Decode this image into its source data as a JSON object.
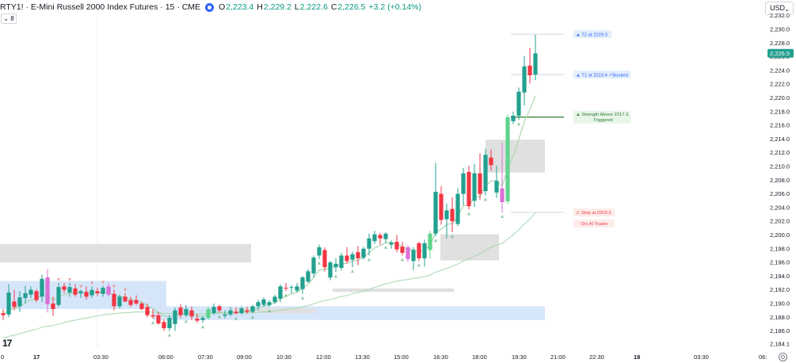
{
  "header": {
    "symbol": "RTY1! · E-Mini Russell 2000 Index Futures · 15 · CME",
    "open_label": "O",
    "open": "2,223.4",
    "high_label": "H",
    "high": "2,229.2",
    "low_label": "L",
    "low": "2,222.6",
    "close_label": "C",
    "close": "2,226.5",
    "change": "+3.2 (+0.14%)",
    "indicator_count": "8"
  },
  "currency_selector": {
    "label": "USD",
    "icon": "chevron-down-icon"
  },
  "logo_icon": "tradingview-logo-icon",
  "settings_icon": "gear-icon",
  "colors": {
    "up": "#22a08f",
    "down": "#f23645",
    "pink": "#da70d6",
    "light_green": "#5fd48c",
    "ma": "#a8d8b0",
    "ma_red": "#f08080",
    "zone_grey": "#e0e0e0",
    "zone_blue": "#d6e6fa",
    "price_tag": "#22a08f"
  },
  "chart_data": {
    "type": "candlestick",
    "ylim": [
      2184.1,
      2232.2
    ],
    "y_ticks": [
      "2,186.0",
      "2,188.0",
      "2,190.0",
      "2,192.0",
      "2,194.0",
      "2,196.0",
      "2,198.0",
      "2,200.0",
      "2,202.0",
      "2,204.0",
      "2,206.0",
      "2,208.0",
      "2,210.0",
      "2,212.0",
      "2,214.0",
      "2,216.0",
      "2,218.0",
      "2,220.0",
      "2,222.0",
      "2,224.0",
      "2,226.0",
      "2,228.0",
      "2,230.0",
      "2,232.0",
      "2,184.1"
    ],
    "x_ticks": [
      "0",
      "17",
      "03:30",
      "06:00",
      "07:30",
      "09:00",
      "10:30",
      "12:00",
      "13:30",
      "15:00",
      "16:30",
      "18:00",
      "19:30",
      "21:00",
      "22:30",
      "18",
      "03:30",
      "06:"
    ],
    "last_price": "2,226.5",
    "candles": [
      {
        "o": 2188.6,
        "h": 2189.2,
        "l": 2187.6,
        "c": 2188.3
      },
      {
        "o": 2188.4,
        "h": 2192.8,
        "l": 2188.0,
        "c": 2191.6
      },
      {
        "o": 2190.3,
        "h": 2192.0,
        "l": 2189.0,
        "c": 2189.5
      },
      {
        "o": 2189.6,
        "h": 2191.8,
        "l": 2188.8,
        "c": 2190.9
      },
      {
        "o": 2190.8,
        "h": 2192.6,
        "l": 2190.0,
        "c": 2191.5
      },
      {
        "o": 2191.3,
        "h": 2192.5,
        "l": 2190.8,
        "c": 2192.0
      },
      {
        "o": 2191.8,
        "h": 2192.1,
        "l": 2190.2,
        "c": 2190.5
      },
      {
        "o": 2191.0,
        "h": 2194.2,
        "l": 2190.2,
        "c": 2193.6
      },
      {
        "o": 2193.8,
        "h": 2195.0,
        "l": 2188.7,
        "c": 2189.9,
        "color": "pink"
      },
      {
        "o": 2190.0,
        "h": 2191.0,
        "l": 2188.2,
        "c": 2189.2
      },
      {
        "o": 2189.8,
        "h": 2193.0,
        "l": 2189.5,
        "c": 2192.4
      },
      {
        "o": 2192.5,
        "h": 2193.0,
        "l": 2191.5,
        "c": 2192.0
      },
      {
        "o": 2191.6,
        "h": 2193.0,
        "l": 2191.0,
        "c": 2192.4
      },
      {
        "o": 2192.2,
        "h": 2192.8,
        "l": 2191.0,
        "c": 2191.3
      },
      {
        "o": 2191.5,
        "h": 2192.0,
        "l": 2190.8,
        "c": 2191.8
      },
      {
        "o": 2191.7,
        "h": 2192.5,
        "l": 2190.6,
        "c": 2191.0
      },
      {
        "o": 2191.2,
        "h": 2192.5,
        "l": 2190.8,
        "c": 2192.0
      },
      {
        "o": 2191.8,
        "h": 2192.3,
        "l": 2191.1,
        "c": 2191.5
      },
      {
        "o": 2191.4,
        "h": 2192.6,
        "l": 2191.0,
        "c": 2192.3
      },
      {
        "o": 2192.5,
        "h": 2193.0,
        "l": 2191.0,
        "c": 2191.3,
        "color": "pink"
      },
      {
        "o": 2191.4,
        "h": 2192.0,
        "l": 2189.0,
        "c": 2189.6
      },
      {
        "o": 2189.6,
        "h": 2191.3,
        "l": 2189.3,
        "c": 2191.0
      },
      {
        "o": 2191.0,
        "h": 2191.5,
        "l": 2190.2,
        "c": 2190.3
      },
      {
        "o": 2190.5,
        "h": 2191.0,
        "l": 2189.5,
        "c": 2189.8
      },
      {
        "o": 2190.5,
        "h": 2191.2,
        "l": 2189.8,
        "c": 2190.0
      },
      {
        "o": 2190.0,
        "h": 2190.3,
        "l": 2189.0,
        "c": 2189.2
      },
      {
        "o": 2189.5,
        "h": 2190.0,
        "l": 2188.0,
        "c": 2188.3
      },
      {
        "o": 2188.3,
        "h": 2189.2,
        "l": 2187.8,
        "c": 2188.1
      },
      {
        "o": 2188.3,
        "h": 2188.8,
        "l": 2186.9,
        "c": 2187.1
      },
      {
        "o": 2187.3,
        "h": 2187.7,
        "l": 2186.0,
        "c": 2186.4
      },
      {
        "o": 2186.4,
        "h": 2188.3,
        "l": 2186.0,
        "c": 2187.9
      },
      {
        "o": 2187.0,
        "h": 2189.4,
        "l": 2186.0,
        "c": 2189.0
      },
      {
        "o": 2189.4,
        "h": 2189.9,
        "l": 2187.9,
        "c": 2188.3
      },
      {
        "o": 2188.3,
        "h": 2189.8,
        "l": 2188.0,
        "c": 2189.2
      },
      {
        "o": 2189.0,
        "h": 2189.6,
        "l": 2187.6,
        "c": 2188.1
      },
      {
        "o": 2187.8,
        "h": 2188.5,
        "l": 2187.2,
        "c": 2187.5
      },
      {
        "o": 2187.6,
        "h": 2188.2,
        "l": 2187.2,
        "c": 2187.9
      },
      {
        "o": 2187.9,
        "h": 2189.5,
        "l": 2187.6,
        "c": 2189.2,
        "color": "light"
      },
      {
        "o": 2188.6,
        "h": 2190.0,
        "l": 2188.3,
        "c": 2189.5
      },
      {
        "o": 2189.6,
        "h": 2189.8,
        "l": 2188.7,
        "c": 2189.0
      },
      {
        "o": 2188.2,
        "h": 2189.0,
        "l": 2187.8,
        "c": 2188.4
      },
      {
        "o": 2188.4,
        "h": 2189.5,
        "l": 2188.1,
        "c": 2189.0
      },
      {
        "o": 2188.8,
        "h": 2189.4,
        "l": 2188.4,
        "c": 2188.6
      },
      {
        "o": 2188.6,
        "h": 2189.6,
        "l": 2188.4,
        "c": 2189.3
      },
      {
        "o": 2189.0,
        "h": 2189.5,
        "l": 2188.5,
        "c": 2188.8
      },
      {
        "o": 2188.8,
        "h": 2189.8,
        "l": 2188.6,
        "c": 2189.6
      },
      {
        "o": 2189.6,
        "h": 2190.5,
        "l": 2189.0,
        "c": 2190.2
      },
      {
        "o": 2189.8,
        "h": 2190.9,
        "l": 2189.5,
        "c": 2190.6
      },
      {
        "o": 2189.8,
        "h": 2190.5,
        "l": 2189.5,
        "c": 2190.2
      },
      {
        "o": 2190.2,
        "h": 2191.3,
        "l": 2190.0,
        "c": 2191.0
      },
      {
        "o": 2190.7,
        "h": 2192.8,
        "l": 2190.2,
        "c": 2192.5
      },
      {
        "o": 2192.3,
        "h": 2193.0,
        "l": 2191.8,
        "c": 2192.2
      },
      {
        "o": 2192.3,
        "h": 2192.7,
        "l": 2191.5,
        "c": 2192.4
      },
      {
        "o": 2191.9,
        "h": 2193.0,
        "l": 2191.6,
        "c": 2192.5
      },
      {
        "o": 2192.1,
        "h": 2194.0,
        "l": 2191.4,
        "c": 2193.8
      },
      {
        "o": 2193.2,
        "h": 2195.0,
        "l": 2193.0,
        "c": 2194.7
      },
      {
        "o": 2194.4,
        "h": 2197.0,
        "l": 2193.8,
        "c": 2196.7
      },
      {
        "o": 2197.0,
        "h": 2198.6,
        "l": 2196.5,
        "c": 2198.2
      },
      {
        "o": 2197.8,
        "h": 2198.2,
        "l": 2194.7,
        "c": 2195.3
      },
      {
        "o": 2193.8,
        "h": 2196.2,
        "l": 2193.4,
        "c": 2196.0
      },
      {
        "o": 2195.3,
        "h": 2196.6,
        "l": 2194.6,
        "c": 2195.8
      },
      {
        "o": 2195.2,
        "h": 2197.4,
        "l": 2194.8,
        "c": 2197.0
      },
      {
        "o": 2197.0,
        "h": 2198.2,
        "l": 2195.8,
        "c": 2196.2
      },
      {
        "o": 2196.4,
        "h": 2197.6,
        "l": 2195.3,
        "c": 2197.2
      },
      {
        "o": 2197.5,
        "h": 2198.4,
        "l": 2195.6,
        "c": 2196.6
      },
      {
        "o": 2196.7,
        "h": 2198.3,
        "l": 2196.4,
        "c": 2198.0
      },
      {
        "o": 2198.0,
        "h": 2200.2,
        "l": 2197.0,
        "c": 2199.5
      },
      {
        "o": 2199.1,
        "h": 2200.6,
        "l": 2198.7,
        "c": 2200.1
      },
      {
        "o": 2200.0,
        "h": 2200.3,
        "l": 2198.6,
        "c": 2199.5
      },
      {
        "o": 2199.4,
        "h": 2200.4,
        "l": 2198.8,
        "c": 2200.2
      },
      {
        "o": 2198.6,
        "h": 2199.2,
        "l": 2198.0,
        "c": 2198.9
      },
      {
        "o": 2199.0,
        "h": 2200.0,
        "l": 2197.5,
        "c": 2197.9
      },
      {
        "o": 2198.3,
        "h": 2199.0,
        "l": 2197.0,
        "c": 2197.4
      },
      {
        "o": 2198.2,
        "h": 2198.5,
        "l": 2196.1,
        "c": 2196.5,
        "color": "pink"
      },
      {
        "o": 2196.2,
        "h": 2198.2,
        "l": 2194.9,
        "c": 2197.8
      },
      {
        "o": 2198.8,
        "h": 2199.0,
        "l": 2196.2,
        "c": 2196.6
      },
      {
        "o": 2196.6,
        "h": 2199.3,
        "l": 2195.4,
        "c": 2198.8
      },
      {
        "o": 2197.8,
        "h": 2200.6,
        "l": 2196.6,
        "c": 2200.2,
        "color": "light"
      },
      {
        "o": 2200.2,
        "h": 2210.5,
        "l": 2199.8,
        "c": 2206.3
      },
      {
        "o": 2206.0,
        "h": 2207.1,
        "l": 2201.5,
        "c": 2202.2
      },
      {
        "o": 2202.3,
        "h": 2204.6,
        "l": 2199.5,
        "c": 2203.6
      },
      {
        "o": 2203.8,
        "h": 2205.5,
        "l": 2200.4,
        "c": 2202.0
      },
      {
        "o": 2201.6,
        "h": 2206.8,
        "l": 2201.3,
        "c": 2206.0
      },
      {
        "o": 2206.0,
        "h": 2209.8,
        "l": 2204.3,
        "c": 2209.0
      },
      {
        "o": 2209.2,
        "h": 2210.1,
        "l": 2203.7,
        "c": 2204.2
      },
      {
        "o": 2205.0,
        "h": 2210.4,
        "l": 2204.1,
        "c": 2209.0
      },
      {
        "o": 2209.0,
        "h": 2211.9,
        "l": 2205.1,
        "c": 2206.0
      },
      {
        "o": 2206.4,
        "h": 2212.6,
        "l": 2205.8,
        "c": 2211.7
      },
      {
        "o": 2211.3,
        "h": 2212.5,
        "l": 2209.4,
        "c": 2210.2
      },
      {
        "o": 2206.2,
        "h": 2210.1,
        "l": 2205.4,
        "c": 2207.9
      },
      {
        "o": 2206.8,
        "h": 2213.5,
        "l": 2203.3,
        "c": 2204.8,
        "color": "pink"
      },
      {
        "o": 2204.9,
        "h": 2217.6,
        "l": 2204.5,
        "c": 2217.2,
        "color": "light"
      },
      {
        "o": 2216.6,
        "h": 2218.0,
        "l": 2216.2,
        "c": 2217.4
      },
      {
        "o": 2217.4,
        "h": 2221.5,
        "l": 2216.8,
        "c": 2220.9
      },
      {
        "o": 2220.8,
        "h": 2226.1,
        "l": 2218.9,
        "c": 2224.6
      },
      {
        "o": 2224.7,
        "h": 2227.3,
        "l": 2222.1,
        "c": 2223.3
      },
      {
        "o": 2223.4,
        "h": 2229.2,
        "l": 2222.6,
        "c": 2226.5
      }
    ],
    "moving_averages": [
      {
        "name": "",
        "color": "ma",
        "values": "smooth fast MA following price"
      },
      {
        "name": "",
        "color": "ma",
        "values": "slow MA below price"
      }
    ],
    "levels": [
      {
        "label": "▲ T2 at 2229.3",
        "price": 2229.3
      },
      {
        "label": "▲ T1 at 2223.4 ✓Booked",
        "price": 2223.4
      },
      {
        "label": "▲ Strength Above 2217.2, Triggered",
        "price": 2217.2
      },
      {
        "label": "⚠ Stop at 2203.3",
        "price": 2203.3
      }
    ],
    "brand_label": "Orc AI Trader"
  }
}
